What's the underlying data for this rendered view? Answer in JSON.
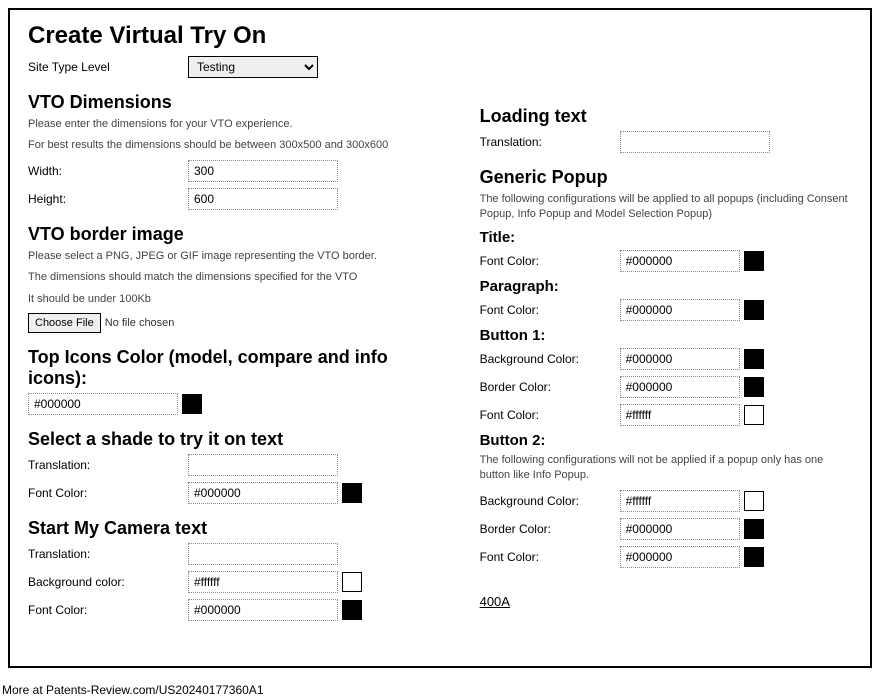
{
  "page": {
    "title": "Create Virtual Try On",
    "figure_ref": "400A",
    "footer": "More at Patents-Review.com/US20240177360A1"
  },
  "site_type": {
    "label": "Site Type Level",
    "value": "Testing"
  },
  "dimensions": {
    "heading": "VTO Dimensions",
    "desc1": "Please enter the dimensions for your VTO experience.",
    "desc2": "For best results the dimensions should be between 300x500 and 300x600",
    "width_label": "Width:",
    "width_value": "300",
    "height_label": "Height:",
    "height_value": "600"
  },
  "border_image": {
    "heading": "VTO border image",
    "desc1": "Please select a PNG, JPEG or GIF image representing the VTO border.",
    "desc2": "The dimensions should match the dimensions specified for the VTO",
    "desc3": "It should be under 100Kb",
    "button": "Choose File",
    "status": "No file chosen"
  },
  "top_icons": {
    "heading": "Top Icons Color (model, compare and info icons):",
    "value": "#000000",
    "swatch": "#000000"
  },
  "shade_text": {
    "heading": "Select a shade to try it on text",
    "translation_label": "Translation:",
    "translation_value": "",
    "font_label": "Font Color:",
    "font_value": "#000000",
    "font_swatch": "#000000"
  },
  "camera_text": {
    "heading": "Start My Camera text",
    "translation_label": "Translation:",
    "translation_value": "",
    "bg_label": "Background color:",
    "bg_value": "#ffffff",
    "bg_swatch": "#ffffff",
    "font_label": "Font Color:",
    "font_value": "#000000",
    "font_swatch": "#000000"
  },
  "loading": {
    "heading": "Loading text",
    "translation_label": "Translation:",
    "translation_value": ""
  },
  "popup": {
    "heading": "Generic Popup",
    "desc": "The following configurations will be applied to all popups (including Consent Popup, Info Popup and Model Selection Popup)",
    "title_section": "Title:",
    "title_font_label": "Font Color:",
    "title_font_value": "#000000",
    "title_font_swatch": "#000000",
    "para_section": "Paragraph:",
    "para_font_label": "Font Color:",
    "para_font_value": "#000000",
    "para_font_swatch": "#000000",
    "btn1_section": "Button 1:",
    "btn1_bg_label": "Background Color:",
    "btn1_bg_value": "#000000",
    "btn1_bg_swatch": "#000000",
    "btn1_border_label": "Border Color:",
    "btn1_border_value": "#000000",
    "btn1_border_swatch": "#000000",
    "btn1_font_label": "Font Color:",
    "btn1_font_value": "#ffffff",
    "btn1_font_swatch": "#ffffff",
    "btn2_section": "Button 2:",
    "btn2_desc": "The following configurations will not be applied if a popup only has one button like Info Popup.",
    "btn2_bg_label": "Background Color:",
    "btn2_bg_value": "#ffffff",
    "btn2_bg_swatch": "#ffffff",
    "btn2_border_label": "Border Color:",
    "btn2_border_value": "#000000",
    "btn2_border_swatch": "#000000",
    "btn2_font_label": "Font Color:",
    "btn2_font_value": "#000000",
    "btn2_font_swatch": "#000000"
  }
}
